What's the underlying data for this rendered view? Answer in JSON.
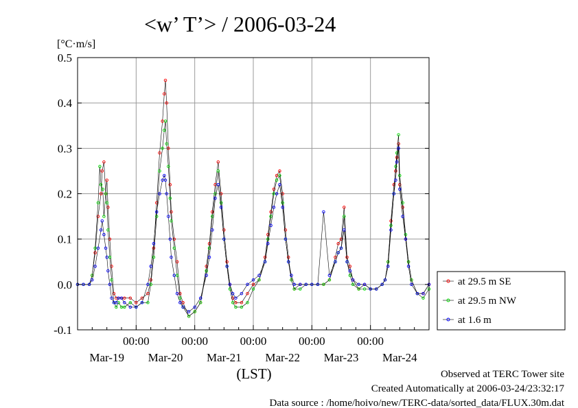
{
  "chart_data": {
    "type": "line",
    "title": "<w’ T’> / 2006-03-24",
    "ylabel": "[°C·m/s]",
    "xlabel": "(LST)",
    "ylim": [
      -0.1,
      0.5
    ],
    "yticks": [
      "0.5",
      "0.4",
      "0.3",
      "0.2",
      "0.1",
      "0.0",
      "-0.1"
    ],
    "xlim_days": [
      0,
      6
    ],
    "day_labels": [
      "Mar-19",
      "Mar-20",
      "Mar-21",
      "Mar-22",
      "Mar-23",
      "Mar-24"
    ],
    "hour_label": "00:00",
    "x_unit": "days since Mar-18 00:00 LST",
    "grid": true,
    "legend_position": "right",
    "colors": {
      "se": "#ff0000",
      "nw": "#00dd00",
      "low": "#0000ff",
      "line": "#000000"
    },
    "series": [
      {
        "name": "at 29.5 m SE",
        "color": "#ff0000",
        "x": [
          0,
          0.1,
          0.2,
          0.25,
          0.3,
          0.35,
          0.4,
          0.42,
          0.45,
          0.48,
          0.5,
          0.52,
          0.55,
          0.58,
          0.62,
          0.66,
          0.7,
          0.75,
          0.8,
          0.9,
          1.0,
          1.1,
          1.2,
          1.25,
          1.3,
          1.35,
          1.4,
          1.45,
          1.48,
          1.5,
          1.52,
          1.55,
          1.58,
          1.6,
          1.65,
          1.7,
          1.75,
          1.8,
          1.9,
          2.0,
          2.1,
          2.2,
          2.25,
          2.3,
          2.35,
          2.4,
          2.45,
          2.5,
          2.55,
          2.6,
          2.65,
          2.7,
          2.8,
          2.9,
          3.0,
          3.1,
          3.2,
          3.25,
          3.3,
          3.35,
          3.4,
          3.45,
          3.5,
          3.55,
          3.6,
          3.65,
          3.7,
          3.8,
          3.9,
          4.0,
          4.1,
          4.2,
          4.3,
          4.4,
          4.45,
          4.5,
          4.55,
          4.6,
          4.65,
          4.7,
          4.8,
          4.9,
          5.0,
          5.1,
          5.2,
          5.25,
          5.3,
          5.35,
          5.4,
          5.43,
          5.45,
          5.48,
          5.5,
          5.55,
          5.6,
          5.65,
          5.7,
          5.8,
          5.9,
          6.0
        ],
        "y": [
          0.0,
          0.0,
          0.0,
          0.02,
          0.07,
          0.15,
          0.2,
          0.25,
          0.27,
          0.2,
          0.23,
          0.17,
          0.1,
          0.04,
          -0.02,
          -0.03,
          -0.03,
          -0.03,
          -0.03,
          -0.03,
          -0.04,
          -0.03,
          -0.02,
          0.01,
          0.08,
          0.18,
          0.29,
          0.36,
          0.42,
          0.45,
          0.4,
          0.3,
          0.22,
          0.16,
          0.1,
          0.05,
          -0.02,
          -0.04,
          -0.07,
          -0.06,
          -0.04,
          0.04,
          0.09,
          0.16,
          0.22,
          0.27,
          0.2,
          0.12,
          0.05,
          0.0,
          -0.03,
          -0.04,
          -0.04,
          -0.02,
          0.0,
          0.01,
          0.06,
          0.11,
          0.16,
          0.21,
          0.24,
          0.25,
          0.2,
          0.12,
          0.06,
          0.01,
          -0.01,
          0.0,
          0.0,
          0.0,
          0.0,
          0.0,
          0.01,
          0.06,
          0.09,
          0.1,
          0.17,
          0.06,
          0.04,
          0.01,
          -0.01,
          0.0,
          -0.01,
          -0.01,
          0.0,
          0.01,
          0.05,
          0.14,
          0.22,
          0.25,
          0.28,
          0.31,
          0.22,
          0.17,
          0.1,
          0.05,
          0.01,
          -0.02,
          -0.02,
          0.0
        ]
      },
      {
        "name": "at 29.5 m NW",
        "color": "#00dd00",
        "x": [
          0,
          0.1,
          0.2,
          0.25,
          0.3,
          0.35,
          0.38,
          0.4,
          0.43,
          0.45,
          0.48,
          0.5,
          0.52,
          0.55,
          0.58,
          0.62,
          0.66,
          0.7,
          0.75,
          0.8,
          0.9,
          1.0,
          1.1,
          1.2,
          1.25,
          1.3,
          1.35,
          1.4,
          1.45,
          1.48,
          1.5,
          1.52,
          1.55,
          1.58,
          1.6,
          1.65,
          1.7,
          1.75,
          1.8,
          1.9,
          2.0,
          2.1,
          2.2,
          2.25,
          2.3,
          2.35,
          2.4,
          2.45,
          2.5,
          2.55,
          2.6,
          2.65,
          2.7,
          2.8,
          2.9,
          3.0,
          3.1,
          3.2,
          3.25,
          3.3,
          3.35,
          3.4,
          3.45,
          3.5,
          3.55,
          3.6,
          3.65,
          3.7,
          3.8,
          3.9,
          4.0,
          4.1,
          4.2,
          4.3,
          4.4,
          4.45,
          4.5,
          4.55,
          4.6,
          4.65,
          4.7,
          4.8,
          4.9,
          5.0,
          5.1,
          5.2,
          5.25,
          5.3,
          5.35,
          5.4,
          5.43,
          5.45,
          5.48,
          5.5,
          5.55,
          5.6,
          5.65,
          5.7,
          5.8,
          5.9,
          6.0
        ],
        "y": [
          0.0,
          0.0,
          0.0,
          0.02,
          0.08,
          0.18,
          0.26,
          0.22,
          0.21,
          0.15,
          0.2,
          0.18,
          0.12,
          0.06,
          0.01,
          -0.04,
          -0.05,
          -0.04,
          -0.05,
          -0.05,
          -0.04,
          -0.05,
          -0.04,
          -0.04,
          0.0,
          0.06,
          0.15,
          0.25,
          0.3,
          0.34,
          0.36,
          0.31,
          0.26,
          0.19,
          0.14,
          0.08,
          0.02,
          -0.03,
          -0.05,
          -0.07,
          -0.06,
          -0.04,
          0.03,
          0.08,
          0.15,
          0.2,
          0.25,
          0.18,
          0.1,
          0.04,
          -0.01,
          -0.04,
          -0.05,
          -0.05,
          -0.04,
          -0.01,
          0.01,
          0.05,
          0.1,
          0.15,
          0.2,
          0.23,
          0.24,
          0.18,
          0.1,
          0.05,
          0.01,
          -0.01,
          -0.01,
          0.0,
          0.0,
          0.0,
          0.0,
          0.01,
          0.05,
          0.07,
          0.08,
          0.15,
          0.05,
          0.02,
          0.0,
          -0.01,
          -0.01,
          -0.01,
          -0.01,
          0.0,
          0.01,
          0.05,
          0.13,
          0.2,
          0.26,
          0.29,
          0.33,
          0.24,
          0.18,
          0.11,
          0.05,
          0.01,
          -0.02,
          -0.03,
          -0.01
        ]
      },
      {
        "name": "at 1.6 m",
        "color": "#0000ff",
        "x": [
          0,
          0.1,
          0.2,
          0.25,
          0.3,
          0.35,
          0.4,
          0.42,
          0.45,
          0.48,
          0.5,
          0.52,
          0.55,
          0.58,
          0.62,
          0.66,
          0.7,
          0.75,
          0.8,
          0.9,
          1.0,
          1.1,
          1.2,
          1.25,
          1.3,
          1.35,
          1.4,
          1.45,
          1.48,
          1.5,
          1.52,
          1.55,
          1.58,
          1.6,
          1.65,
          1.7,
          1.75,
          1.8,
          1.9,
          2.0,
          2.1,
          2.2,
          2.25,
          2.3,
          2.35,
          2.4,
          2.45,
          2.5,
          2.55,
          2.6,
          2.65,
          2.7,
          2.8,
          2.9,
          3.0,
          3.1,
          3.2,
          3.25,
          3.3,
          3.35,
          3.4,
          3.45,
          3.5,
          3.55,
          3.6,
          3.65,
          3.7,
          3.8,
          3.9,
          4.0,
          4.1,
          4.2,
          4.3,
          4.4,
          4.45,
          4.5,
          4.55,
          4.6,
          4.65,
          4.7,
          4.8,
          4.9,
          5.0,
          5.1,
          5.2,
          5.25,
          5.3,
          5.35,
          5.4,
          5.43,
          5.45,
          5.48,
          5.5,
          5.55,
          5.6,
          5.65,
          5.7,
          5.8,
          5.9,
          6.0
        ],
        "y": [
          0.0,
          0.0,
          0.0,
          0.01,
          0.04,
          0.08,
          0.12,
          0.14,
          0.11,
          0.08,
          0.06,
          0.03,
          0.0,
          -0.03,
          -0.04,
          -0.04,
          -0.03,
          -0.03,
          -0.04,
          -0.05,
          -0.05,
          -0.04,
          0.0,
          0.04,
          0.09,
          0.16,
          0.2,
          0.23,
          0.24,
          0.23,
          0.2,
          0.15,
          0.1,
          0.06,
          0.02,
          -0.02,
          -0.04,
          -0.05,
          -0.06,
          -0.05,
          -0.03,
          0.02,
          0.06,
          0.12,
          0.19,
          0.22,
          0.17,
          0.1,
          0.04,
          0.0,
          -0.02,
          -0.03,
          -0.02,
          0.0,
          0.01,
          0.02,
          0.05,
          0.09,
          0.13,
          0.17,
          0.2,
          0.22,
          0.17,
          0.1,
          0.05,
          0.02,
          0.0,
          0.0,
          0.0,
          0.0,
          0.0,
          0.16,
          0.02,
          0.05,
          0.07,
          0.08,
          0.12,
          0.05,
          0.03,
          0.01,
          0.0,
          0.0,
          -0.01,
          -0.01,
          0.0,
          0.01,
          0.04,
          0.12,
          0.2,
          0.23,
          0.27,
          0.3,
          0.21,
          0.15,
          0.1,
          0.04,
          0.0,
          -0.02,
          -0.02,
          0.0
        ]
      }
    ]
  },
  "footer": {
    "line1": "Observed at TERC Tower site",
    "line2": "Created Automatically at 2006-03-24/23:32:17",
    "line3": "Data source : /home/hoivo/new/TERC-data/sorted_data/FLUX.30m.dat"
  }
}
